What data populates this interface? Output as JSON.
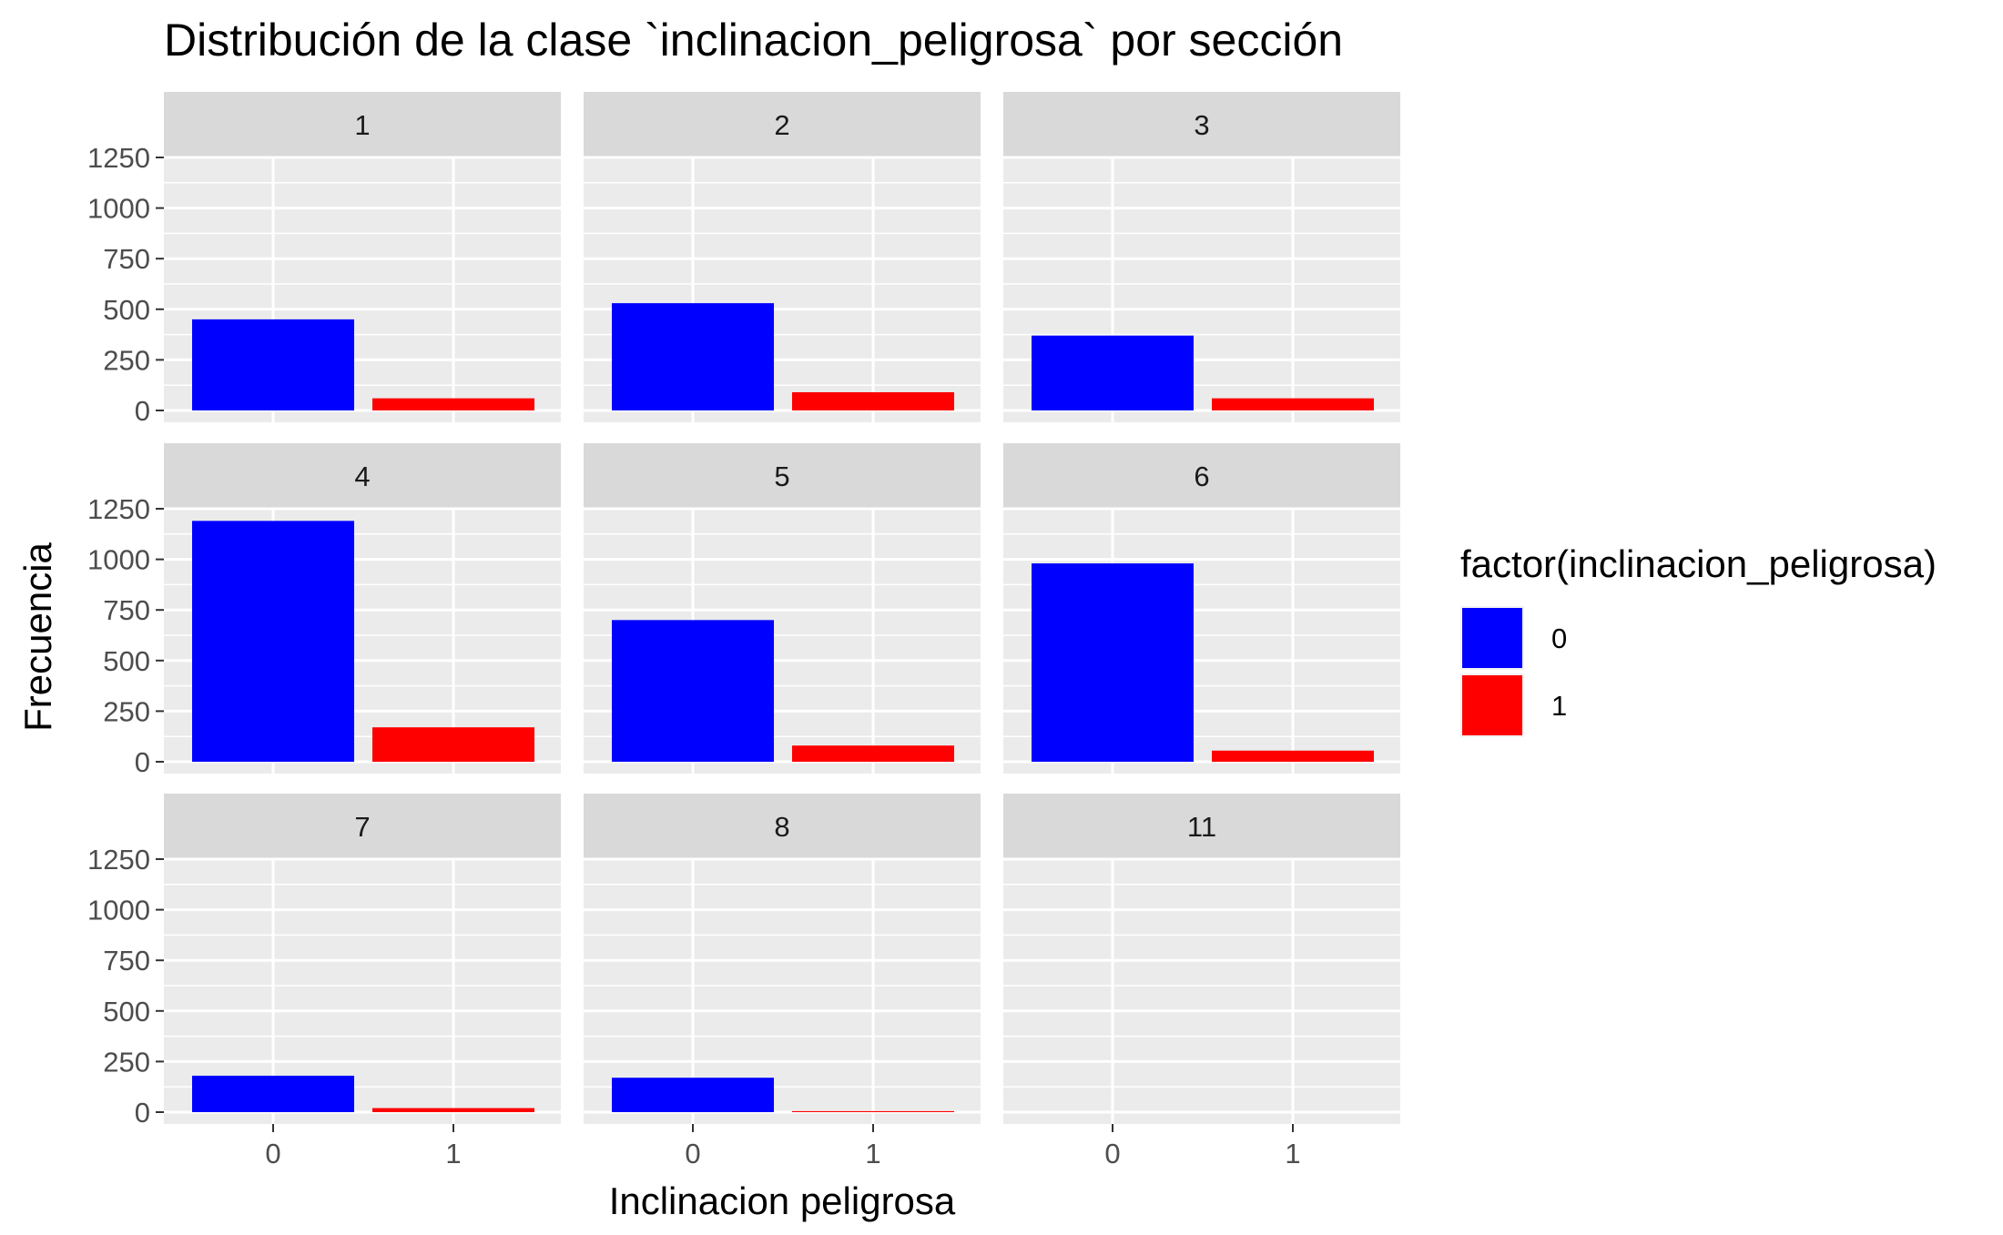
{
  "chart_data": {
    "type": "bar",
    "title": "Distribución de la clase `inclinacion_peligrosa` por sección",
    "xlabel": "Inclinacion peligrosa",
    "ylabel": "Frecuencia",
    "categories": [
      "0",
      "1"
    ],
    "y_ticks": [
      0,
      250,
      500,
      750,
      1000,
      1250
    ],
    "ylim": [
      0,
      1500
    ],
    "grid": true,
    "legend": {
      "title": "factor(inclinacion_peligrosa)",
      "position": "right",
      "entries": [
        {
          "label": "0",
          "color": "#0000ff"
        },
        {
          "label": "1",
          "color": "#ff0000"
        }
      ]
    },
    "panels": [
      {
        "label": "1",
        "values": [
          450,
          60
        ]
      },
      {
        "label": "2",
        "values": [
          530,
          90
        ]
      },
      {
        "label": "3",
        "values": [
          370,
          60
        ]
      },
      {
        "label": "4",
        "values": [
          1190,
          170
        ]
      },
      {
        "label": "5",
        "values": [
          700,
          80
        ]
      },
      {
        "label": "6",
        "values": [
          980,
          55
        ]
      },
      {
        "label": "7",
        "values": [
          180,
          20
        ]
      },
      {
        "label": "8",
        "values": [
          170,
          5
        ]
      },
      {
        "label": "11",
        "values": [
          0,
          0
        ]
      }
    ]
  },
  "colors": {
    "panel_background": "#ebebeb",
    "strip_background": "#d9d9d9",
    "grid": "#ffffff",
    "tick": "#333333"
  }
}
